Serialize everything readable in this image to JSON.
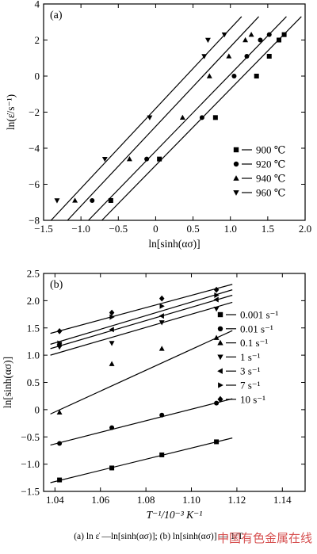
{
  "caption": "(a) ln ε̇ —ln[sinh(ασ)]; (b) ln[sinh(ασ)] — 1/T",
  "watermark": "中国有色金属在线",
  "chart_data": [
    {
      "panel_label": "(a)",
      "type": "scatter",
      "xlabel": "ln[sinh(ασ)]",
      "ylabel": "ln(ε̇/s⁻¹)",
      "xlim": [
        -1.5,
        2.0
      ],
      "ylim": [
        -8,
        4
      ],
      "xticks": [
        -1.5,
        -1.0,
        -0.5,
        0,
        0.5,
        1.0,
        1.5,
        2.0
      ],
      "xtick_labels": [
        "−1.5",
        "−1.0",
        "−0.5",
        "0",
        "0.5",
        "1.0",
        "1.5",
        "2.0"
      ],
      "yticks": [
        -8,
        -6,
        -4,
        -2,
        0,
        2,
        4
      ],
      "ytick_labels": [
        "−8",
        "−6",
        "−4",
        "−2",
        "0",
        "2",
        "4"
      ],
      "legend_placement": "bottom-right",
      "series": [
        {
          "name": "900 ℃",
          "marker": "square",
          "x": [
            -0.6,
            0.05,
            0.8,
            1.35,
            1.52,
            1.65,
            1.72
          ],
          "y": [
            -6.9,
            -4.6,
            -2.3,
            0.0,
            1.1,
            2.0,
            2.3
          ],
          "fit": {
            "x": [
              -0.72,
              1.95
            ],
            "y": [
              -8.0,
              3.3
            ]
          }
        },
        {
          "name": "920 ℃",
          "marker": "circle",
          "x": [
            -0.85,
            -0.12,
            0.62,
            1.05,
            1.22,
            1.4,
            1.52
          ],
          "y": [
            -6.9,
            -4.6,
            -2.3,
            0.0,
            1.1,
            2.0,
            2.3
          ],
          "fit": {
            "x": [
              -0.9,
              1.75
            ],
            "y": [
              -8.0,
              3.3
            ]
          }
        },
        {
          "name": "940 ℃",
          "marker": "triangle-up",
          "x": [
            -1.08,
            -0.35,
            0.36,
            0.72,
            0.98,
            1.2,
            1.28
          ],
          "y": [
            -6.9,
            -4.6,
            -2.3,
            0.0,
            1.1,
            2.0,
            2.3
          ],
          "fit": {
            "x": [
              -1.18,
              1.38
            ],
            "y": [
              -8.0,
              3.3
            ]
          }
        },
        {
          "name": "960 ℃",
          "marker": "triangle-down",
          "x": [
            -1.32,
            -0.68,
            -0.08,
            0.65,
            0.7,
            0.92
          ],
          "y": [
            -6.9,
            -4.6,
            -2.3,
            1.1,
            2.0,
            2.3
          ],
          "fit": {
            "x": [
              -1.4,
              1.15
            ],
            "y": [
              -8.0,
              3.3
            ]
          }
        }
      ]
    },
    {
      "panel_label": "(b)",
      "type": "scatter",
      "xlabel": "T⁻¹/10⁻³ K⁻¹",
      "ylabel": "ln[sinh(ασ)]",
      "xlim": [
        1.035,
        1.15
      ],
      "ylim": [
        -1.5,
        2.5
      ],
      "xticks": [
        1.04,
        1.06,
        1.08,
        1.1,
        1.12,
        1.14
      ],
      "xtick_labels": [
        "1.04",
        "1.06",
        "1.08",
        "1.10",
        "1.12",
        "1.14"
      ],
      "yticks": [
        -1.5,
        -1.0,
        -0.5,
        0,
        0.5,
        1.0,
        1.5,
        2.0,
        2.5
      ],
      "ytick_labels": [
        "−1.5",
        "−1.0",
        "−0.5",
        "0",
        "0.5",
        "1.0",
        "1.5",
        "2.0",
        "2.5"
      ],
      "legend_placement": "right",
      "series": [
        {
          "name": "0.001 s⁻¹",
          "marker": "square",
          "x": [
            1.042,
            1.065,
            1.087,
            1.111
          ],
          "y": [
            -1.29,
            -1.07,
            -0.83,
            -0.59
          ],
          "fit": {
            "x": [
              1.038,
              1.118
            ],
            "y": [
              -1.34,
              -0.52
            ]
          }
        },
        {
          "name": "0.01 s⁻¹",
          "marker": "circle",
          "x": [
            1.042,
            1.065,
            1.087,
            1.111
          ],
          "y": [
            -0.62,
            -0.33,
            -0.1,
            0.12
          ],
          "fit": {
            "x": [
              1.038,
              1.118
            ],
            "y": [
              -0.65,
              0.2
            ]
          }
        },
        {
          "name": "0.1 s⁻¹",
          "marker": "triangle-up",
          "x": [
            1.042,
            1.065,
            1.087,
            1.111
          ],
          "y": [
            -0.05,
            0.84,
            1.12,
            1.32
          ],
          "fit": {
            "x": [
              1.038,
              1.118
            ],
            "y": [
              -0.08,
              1.45
            ]
          }
        },
        {
          "name": "1 s⁻¹",
          "marker": "triangle-down",
          "x": [
            1.042,
            1.065,
            1.087,
            1.111
          ],
          "y": [
            1.15,
            1.22,
            1.6,
            1.85
          ],
          "fit": {
            "x": [
              1.038,
              1.118
            ],
            "y": [
              1.0,
              1.97
            ]
          }
        },
        {
          "name": "3 s⁻¹",
          "marker": "triangle-left",
          "x": [
            1.042,
            1.065,
            1.087,
            1.111
          ],
          "y": [
            1.2,
            1.47,
            1.72,
            2.02
          ],
          "fit": {
            "x": [
              1.038,
              1.118
            ],
            "y": [
              1.12,
              2.1
            ]
          }
        },
        {
          "name": "7 s⁻¹",
          "marker": "triangle-right",
          "x": [
            1.042,
            1.065,
            1.087,
            1.111
          ],
          "y": [
            1.22,
            1.7,
            1.9,
            2.1
          ],
          "fit": {
            "x": [
              1.038,
              1.118
            ],
            "y": [
              1.2,
              2.2
            ]
          }
        },
        {
          "name": "10 s⁻¹",
          "marker": "diamond",
          "x": [
            1.042,
            1.065,
            1.087,
            1.111
          ],
          "y": [
            1.44,
            1.78,
            2.04,
            2.2
          ],
          "fit": {
            "x": [
              1.038,
              1.118
            ],
            "y": [
              1.4,
              2.3
            ]
          }
        }
      ]
    }
  ]
}
